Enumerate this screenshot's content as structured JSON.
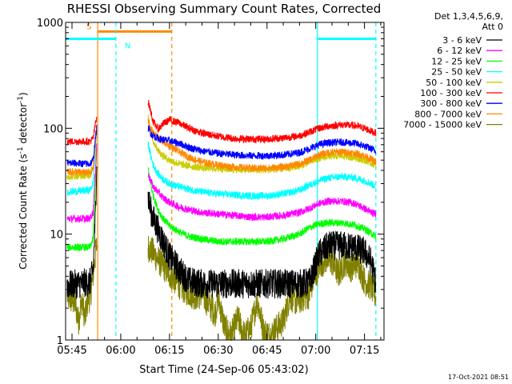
{
  "chart_data": {
    "type": "line",
    "title": "RHESSI Observing Summary Count Rates, Corrected",
    "xlabel": "Start Time (24-Sep-06 05:43:02)",
    "ylabel": "Corrected Count Rate (s",
    "ylabel_sup1": "-1",
    "ylabel_mid": " detector",
    "ylabel_sup2": "-1",
    "ylabel_end": ")",
    "x_ticks": [
      "05:45",
      "06:00",
      "06:15",
      "06:30",
      "06:45",
      "07:00",
      "07:15"
    ],
    "x_tick_minutes": [
      345,
      360,
      375,
      390,
      405,
      420,
      435
    ],
    "xlim": [
      343.03,
      441
    ],
    "y_ticks": [
      "1",
      "10",
      "100",
      "1000"
    ],
    "y_tick_values": [
      1,
      10,
      100,
      1000
    ],
    "ylim": [
      1,
      1000
    ],
    "yscale": "log",
    "legend_header": [
      "Det 1,3,4,5,6,9,",
      "Att 0"
    ],
    "legend_position": "right",
    "footer_date": "17-Oct-2021 08:51",
    "series": [
      {
        "name": "3 - 6 keV",
        "color": "#000000",
        "x": [
          343.5,
          350.5,
          351.5,
          352.2,
          352.6,
          368.5,
          369.2,
          370,
          371.5,
          373,
          375,
          378,
          381,
          385,
          390,
          395,
          400,
          405,
          410,
          415,
          418,
          419,
          421,
          424,
          428,
          432,
          435,
          437,
          438.5
        ],
        "y": [
          3.3,
          3.5,
          4.5,
          15,
          50,
          22,
          17,
          14,
          11,
          8.5,
          6.2,
          4.6,
          3.6,
          3.4,
          3.4,
          3.4,
          3.4,
          3.4,
          3.4,
          3.4,
          3.5,
          4.2,
          6.5,
          7.8,
          7.8,
          7.5,
          6.8,
          5.5,
          3.5
        ]
      },
      {
        "name": "6 - 12 keV",
        "color": "#ff00ff",
        "x": [
          343.5,
          350.5,
          351.5,
          352.2,
          352.6,
          368.5,
          369.2,
          370,
          371.5,
          373,
          375,
          378,
          381,
          385,
          390,
          395,
          400,
          405,
          410,
          415,
          418,
          421,
          424,
          428,
          432,
          435,
          437,
          438.5
        ],
        "y": [
          14,
          14,
          16,
          40,
          70,
          36,
          32,
          28,
          25,
          22,
          20,
          18,
          17,
          16,
          15.5,
          15,
          14.5,
          14.5,
          15,
          16,
          17.5,
          19.5,
          20.5,
          20.5,
          19.5,
          17.5,
          16,
          15.5
        ]
      },
      {
        "name": "12 - 25 keV",
        "color": "#00ff00",
        "x": [
          343.5,
          350.5,
          351.5,
          352.2,
          352.6,
          368.5,
          369.2,
          370,
          371.5,
          373,
          375,
          378,
          381,
          385,
          390,
          395,
          400,
          405,
          410,
          415,
          418,
          421,
          424,
          428,
          432,
          435,
          437,
          438.5
        ],
        "y": [
          7.5,
          7.5,
          9,
          30,
          65,
          40,
          30,
          23,
          17,
          14,
          12,
          10.5,
          9.5,
          9,
          8.5,
          8.5,
          8.5,
          8.5,
          9,
          10,
          11.5,
          12.5,
          12.8,
          12.8,
          12.2,
          11.2,
          10.2,
          9.5
        ]
      },
      {
        "name": "25 - 50 keV",
        "color": "#00ffff",
        "x": [
          343.5,
          350.5,
          351.5,
          352.2,
          352.6,
          368.5,
          369.2,
          370,
          371.5,
          373,
          375,
          378,
          381,
          385,
          390,
          395,
          400,
          405,
          410,
          415,
          418,
          421,
          424,
          428,
          432,
          435,
          437,
          438.5
        ],
        "y": [
          25,
          26,
          30,
          60,
          90,
          70,
          55,
          45,
          37,
          33,
          30,
          28,
          26.5,
          25,
          24,
          23.5,
          23,
          23,
          24,
          26,
          29,
          32,
          34,
          35,
          34,
          32,
          30,
          28
        ]
      },
      {
        "name": "50 - 100 keV",
        "color": "#cccc00",
        "x": [
          343.5,
          350.5,
          351.5,
          352.2,
          352.6,
          368.5,
          369.2,
          370,
          371.5,
          373,
          375,
          378,
          381,
          385,
          390,
          395,
          400,
          405,
          410,
          415,
          418,
          421,
          424,
          428,
          432,
          435,
          437,
          438.5
        ],
        "y": [
          35,
          36,
          40,
          70,
          100,
          130,
          95,
          75,
          62,
          55,
          50,
          46,
          44,
          42.5,
          41.5,
          41,
          40.5,
          40.5,
          41.5,
          44,
          48,
          52,
          54.5,
          55,
          53,
          50,
          47,
          45
        ]
      },
      {
        "name": "100 - 300 keV",
        "color": "#ff0000",
        "x": [
          343.5,
          350.5,
          351.5,
          352.2,
          352.6,
          368.5,
          369.2,
          370,
          371.5,
          373,
          375,
          378,
          381,
          385,
          390,
          395,
          400,
          405,
          410,
          415,
          418,
          421,
          424,
          428,
          432,
          435,
          437,
          438.5
        ],
        "y": [
          75,
          75,
          80,
          110,
          130,
          175,
          145,
          115,
          98,
          110,
          120,
          112,
          100,
          90,
          84,
          80,
          79,
          79,
          81,
          85,
          92,
          100,
          105,
          108,
          106,
          100,
          94,
          90
        ]
      },
      {
        "name": "300 - 800 keV",
        "color": "#0000ff",
        "x": [
          343.5,
          350.5,
          351.5,
          352.2,
          352.6,
          368.5,
          369.2,
          370,
          371.5,
          373,
          375,
          378,
          381,
          385,
          390,
          395,
          400,
          405,
          410,
          415,
          418,
          421,
          424,
          428,
          432,
          435,
          437,
          438.5
        ],
        "y": [
          47,
          46,
          50,
          80,
          100,
          100,
          90,
          85,
          80,
          78,
          76,
          72,
          66,
          61,
          58,
          56,
          55,
          55,
          56,
          59,
          64,
          70,
          73,
          74,
          72,
          68,
          64,
          61
        ]
      },
      {
        "name": "800 - 7000 keV",
        "color": "#ff8800",
        "x": [
          343.5,
          350.5,
          351.5,
          352.2,
          352.6,
          368.5,
          369.2,
          370,
          371.5,
          373,
          375,
          378,
          381,
          385,
          390,
          395,
          400,
          405,
          410,
          415,
          418,
          421,
          424,
          428,
          432,
          435,
          437,
          438.5
        ],
        "y": [
          39,
          38,
          42,
          75,
          95,
          115,
          100,
          90,
          82,
          75,
          68,
          60,
          53,
          48,
          45,
          43,
          42,
          42,
          43,
          46,
          50,
          56,
          59,
          60,
          58,
          55,
          51,
          48
        ]
      },
      {
        "name": "7000 - 15000 keV",
        "color": "#808000",
        "x": [
          343.5,
          346,
          347,
          348,
          349,
          350,
          350.5,
          351.2,
          351.8,
          352.6,
          368.5,
          369.5,
          371,
          373,
          375,
          377,
          379,
          381,
          383,
          385,
          387,
          389,
          390,
          392,
          394,
          396,
          398,
          400,
          402,
          404,
          406,
          408,
          410,
          412,
          414,
          416,
          418,
          419,
          421,
          423,
          425,
          427,
          429,
          431,
          433,
          435,
          437,
          438.5
        ],
        "y": [
          2.6,
          2.2,
          1.5,
          2.4,
          1.6,
          2.6,
          2.4,
          3.5,
          5,
          8,
          7.5,
          7,
          6,
          5,
          4.2,
          3.6,
          3.1,
          2.8,
          2.6,
          2.7,
          2.2,
          1.8,
          2.5,
          1.3,
          1.1,
          1.6,
          1.1,
          1.3,
          2.4,
          1.2,
          1.1,
          1.3,
          1.5,
          2.6,
          2.3,
          2.5,
          2.7,
          3.5,
          5,
          5.8,
          5.5,
          4.2,
          5.5,
          4.8,
          5.4,
          3.6,
          3.2,
          2.6
        ]
      }
    ],
    "shading_periods": [
      {
        "label": "N",
        "color": "#00ffff",
        "solid_at": 343.03,
        "dashed_at": 358.5,
        "bar_level": 700
      },
      {
        "label": "N",
        "color": "#00ffff",
        "solid_at": 420.5,
        "dashed_at": 438.5,
        "bar_level": 700
      }
    ],
    "saa_periods": [
      {
        "label": "S",
        "color": "#ff8800",
        "solid_at": 352.9,
        "dashed_at": 375.7,
        "bar_level": 820
      }
    ]
  }
}
